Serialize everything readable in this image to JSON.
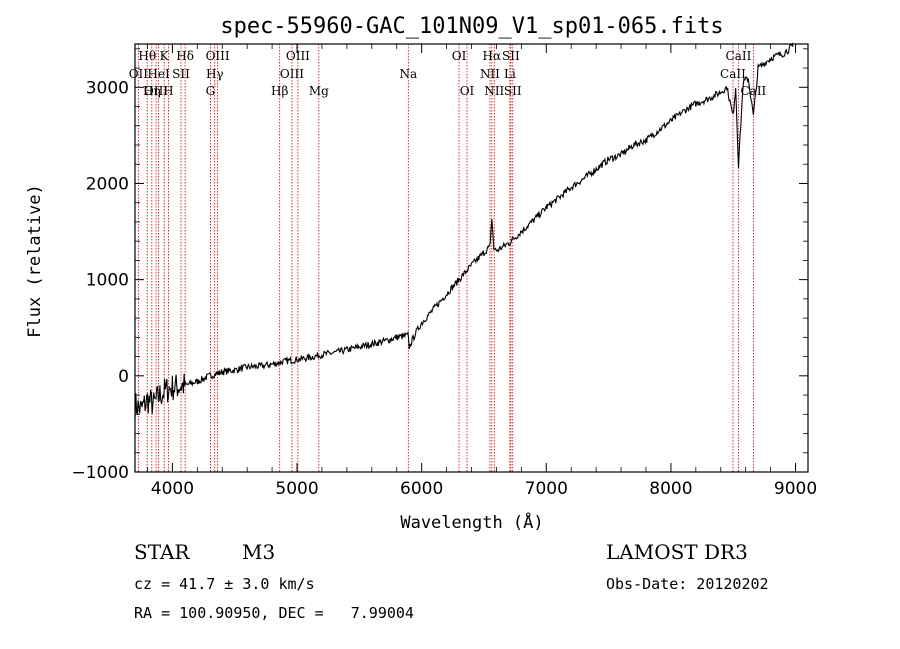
{
  "chart_data": {
    "type": "line",
    "title": "spec-55960-GAC_101N09_V1_sp01-065.fits",
    "xlabel": "Wavelength (Å)",
    "ylabel": "Flux (relative)",
    "xlim": [
      3700,
      9100
    ],
    "ylim": [
      -1000,
      3450
    ],
    "x_ticks": [
      4000,
      5000,
      6000,
      7000,
      8000,
      9000
    ],
    "y_ticks": [
      -1000,
      0,
      1000,
      2000,
      3000
    ],
    "grid": false,
    "line_color": "#000000",
    "marker_color": "#cc0000",
    "series": [
      {
        "name": "flux",
        "x": [
          3700,
          3750,
          3800,
          3850,
          3900,
          3950,
          4000,
          4100,
          4200,
          4300,
          4400,
          4500,
          4600,
          4700,
          4800,
          4900,
          5000,
          5100,
          5200,
          5300,
          5400,
          5500,
          5600,
          5700,
          5800,
          5890,
          5900,
          5950,
          6000,
          6100,
          6200,
          6300,
          6400,
          6500,
          6550,
          6563,
          6580,
          6600,
          6700,
          6800,
          6900,
          7000,
          7100,
          7200,
          7300,
          7400,
          7500,
          7600,
          7700,
          7800,
          7900,
          8000,
          8100,
          8200,
          8300,
          8400,
          8450,
          8498,
          8520,
          8542,
          8580,
          8620,
          8662,
          8700,
          8750,
          8800,
          8850,
          8900,
          8950,
          8980
        ],
        "y": [
          -300,
          -350,
          -250,
          -300,
          -200,
          -150,
          -120,
          -100,
          -60,
          0,
          40,
          60,
          90,
          100,
          120,
          150,
          170,
          190,
          220,
          240,
          270,
          300,
          330,
          360,
          400,
          420,
          300,
          440,
          550,
          700,
          850,
          1000,
          1150,
          1280,
          1350,
          1650,
          1320,
          1300,
          1380,
          1500,
          1620,
          1750,
          1850,
          1960,
          2050,
          2150,
          2250,
          2300,
          2400,
          2450,
          2550,
          2650,
          2750,
          2830,
          2880,
          2950,
          3000,
          2700,
          3000,
          2180,
          3050,
          3100,
          2700,
          3200,
          3250,
          3300,
          3330,
          3350,
          3400,
          3420
        ]
      }
    ],
    "lines": [
      {
        "label": "Hθ",
        "x": 3798,
        "row": 0
      },
      {
        "label": "OII",
        "x": 3727,
        "row": 1
      },
      {
        "label": "OIII",
        "x": 3869,
        "row": 2
      },
      {
        "label": "Hη",
        "x": 3835,
        "row": 2
      },
      {
        "label": "K",
        "x": 3934,
        "row": 0
      },
      {
        "label": "HeI",
        "x": 3889,
        "row": 1
      },
      {
        "label": "SII",
        "x": 4069,
        "row": 1
      },
      {
        "label": "H",
        "x": 3968,
        "row": 2
      },
      {
        "label": "Hδ",
        "x": 4102,
        "row": 0
      },
      {
        "label": "OIII",
        "x": 4363,
        "row": 0
      },
      {
        "label": "Hγ",
        "x": 4340,
        "row": 1
      },
      {
        "label": "G",
        "x": 4305,
        "row": 2
      },
      {
        "label": "Hβ",
        "x": 4861,
        "row": 2
      },
      {
        "label": "OIII",
        "x": 5007,
        "row": 0
      },
      {
        "label": "OIII",
        "x": 4959,
        "row": 1
      },
      {
        "label": "Mg",
        "x": 5175,
        "row": 2
      },
      {
        "label": "Na",
        "x": 5893,
        "row": 1
      },
      {
        "label": "OI",
        "x": 6300,
        "row": 0
      },
      {
        "label": "OI",
        "x": 6364,
        "row": 2
      },
      {
        "label": "Hα",
        "x": 6563,
        "row": 0
      },
      {
        "label": "SII",
        "x": 6716,
        "row": 0
      },
      {
        "label": "NII",
        "x": 6548,
        "row": 1
      },
      {
        "label": "Li",
        "x": 6708,
        "row": 1
      },
      {
        "label": "NII",
        "x": 6583,
        "row": 2
      },
      {
        "label": "SII",
        "x": 6731,
        "row": 2
      },
      {
        "label": "CaII",
        "x": 8542,
        "row": 0
      },
      {
        "label": "CaII",
        "x": 8498,
        "row": 1
      },
      {
        "label": "CaII",
        "x": 8662,
        "row": 2
      }
    ]
  },
  "info": {
    "object_class": "STAR",
    "subclass": "M3",
    "redshift_line": "cz = 41.7 ± 3.0 km/s",
    "coord_line": "RA = 100.90950, DEC =   7.99004",
    "survey": "LAMOST DR3",
    "obs_date": "Obs-Date: 20120202"
  }
}
